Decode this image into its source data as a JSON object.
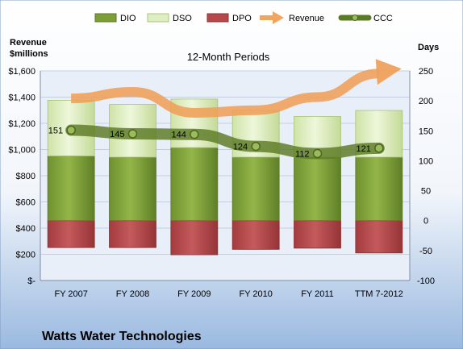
{
  "chart_data": {
    "type": "bar",
    "subtitle": "12-Month Periods",
    "company": "Watts Water Technologies",
    "left_axis_title": [
      "Revenue",
      "$millions"
    ],
    "right_axis_title": "Days",
    "left_ticks": [
      "$-",
      "$200",
      "$400",
      "$600",
      "$800",
      "$1,000",
      "$1,200",
      "$1,400",
      "$1,600"
    ],
    "right_ticks": [
      "-100",
      "-50",
      "0",
      "50",
      "100",
      "150",
      "200",
      "250"
    ],
    "left_range": [
      0,
      1600
    ],
    "right_range": [
      -100,
      250
    ],
    "categories": [
      "FY 2007",
      "FY 2008",
      "FY 2009",
      "FY 2010",
      "FY 2011",
      "TTM 7-2012"
    ],
    "legend": [
      "DIO",
      "DSO",
      "DPO",
      "Revenue",
      "CCC"
    ],
    "series": [
      {
        "name": "DIO",
        "axis": "days",
        "values": [
          108,
          106,
          122,
          106,
          106,
          106
        ]
      },
      {
        "name": "DSO",
        "axis": "days",
        "values": [
          93,
          88,
          81,
          78,
          68,
          78
        ]
      },
      {
        "name": "DPO",
        "axis": "days",
        "values": [
          -45,
          -45,
          -57,
          -48,
          -46,
          -54
        ]
      },
      {
        "name": "Revenue",
        "axis": "revenue",
        "values": [
          1390,
          1440,
          1280,
          1300,
          1400,
          1580
        ]
      },
      {
        "name": "CCC",
        "axis": "days",
        "values": [
          151,
          145,
          144,
          124,
          112,
          121
        ]
      }
    ],
    "ccc_labels": [
      "151",
      "145",
      "144",
      "124",
      "112",
      "121"
    ],
    "colors": {
      "DIO": "#7c9e35",
      "DSO": "#dfeec2",
      "DPO": "#b7484a",
      "Revenue": "#f0a560",
      "CCC": "#5b7a25",
      "background_top": "#ffffff",
      "background_bottom": "#9ab9e0",
      "plot_bg": "#e9eff9"
    },
    "grid": true,
    "legend_position": "top"
  }
}
